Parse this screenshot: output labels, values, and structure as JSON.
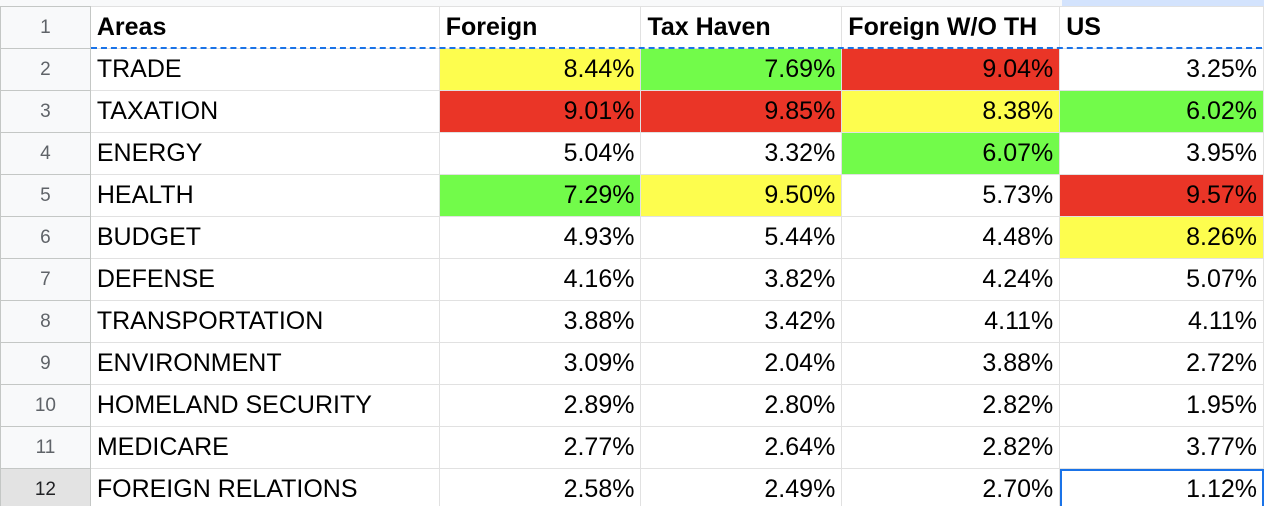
{
  "sheet": {
    "header_row_number": "1",
    "headers": [
      "Areas",
      "Foreign",
      "Tax Haven",
      "Foreign W/O TH",
      "US"
    ],
    "rows": [
      {
        "num": "2",
        "area": "TRADE",
        "values": [
          "8.44%",
          "7.69%",
          "9.04%",
          "3.25%"
        ],
        "fills": [
          "yellow",
          "green",
          "red",
          ""
        ]
      },
      {
        "num": "3",
        "area": "TAXATION",
        "values": [
          "9.01%",
          "9.85%",
          "8.38%",
          "6.02%"
        ],
        "fills": [
          "red",
          "red",
          "yellow",
          "green"
        ]
      },
      {
        "num": "4",
        "area": "ENERGY",
        "values": [
          "5.04%",
          "3.32%",
          "6.07%",
          "3.95%"
        ],
        "fills": [
          "",
          "",
          "green",
          ""
        ]
      },
      {
        "num": "5",
        "area": "HEALTH",
        "values": [
          "7.29%",
          "9.50%",
          "5.73%",
          "9.57%"
        ],
        "fills": [
          "green",
          "yellow",
          "",
          "red"
        ]
      },
      {
        "num": "6",
        "area": "BUDGET",
        "values": [
          "4.93%",
          "5.44%",
          "4.48%",
          "8.26%"
        ],
        "fills": [
          "",
          "",
          "",
          "yellow"
        ]
      },
      {
        "num": "7",
        "area": "DEFENSE",
        "values": [
          "4.16%",
          "3.82%",
          "4.24%",
          "5.07%"
        ],
        "fills": [
          "",
          "",
          "",
          ""
        ]
      },
      {
        "num": "8",
        "area": "TRANSPORTATION",
        "values": [
          "3.88%",
          "3.42%",
          "4.11%",
          "4.11%"
        ],
        "fills": [
          "",
          "",
          "",
          ""
        ]
      },
      {
        "num": "9",
        "area": "ENVIRONMENT",
        "values": [
          "3.09%",
          "2.04%",
          "3.88%",
          "2.72%"
        ],
        "fills": [
          "",
          "",
          "",
          ""
        ]
      },
      {
        "num": "10",
        "area": "HOMELAND SECURITY",
        "values": [
          "2.89%",
          "2.80%",
          "2.82%",
          "1.95%"
        ],
        "fills": [
          "",
          "",
          "",
          ""
        ]
      },
      {
        "num": "11",
        "area": "MEDICARE",
        "values": [
          "2.77%",
          "2.64%",
          "2.82%",
          "3.77%"
        ],
        "fills": [
          "",
          "",
          "",
          ""
        ]
      },
      {
        "num": "12",
        "area": "FOREIGN RELATIONS",
        "values": [
          "2.58%",
          "2.49%",
          "2.70%",
          "1.12%"
        ],
        "fills": [
          "",
          "",
          "",
          ""
        ]
      }
    ]
  },
  "colors": {
    "green": "#72fb4a",
    "yellow": "#fdfd4e",
    "red": "#ea3527",
    "selection": "#1a73e8"
  }
}
